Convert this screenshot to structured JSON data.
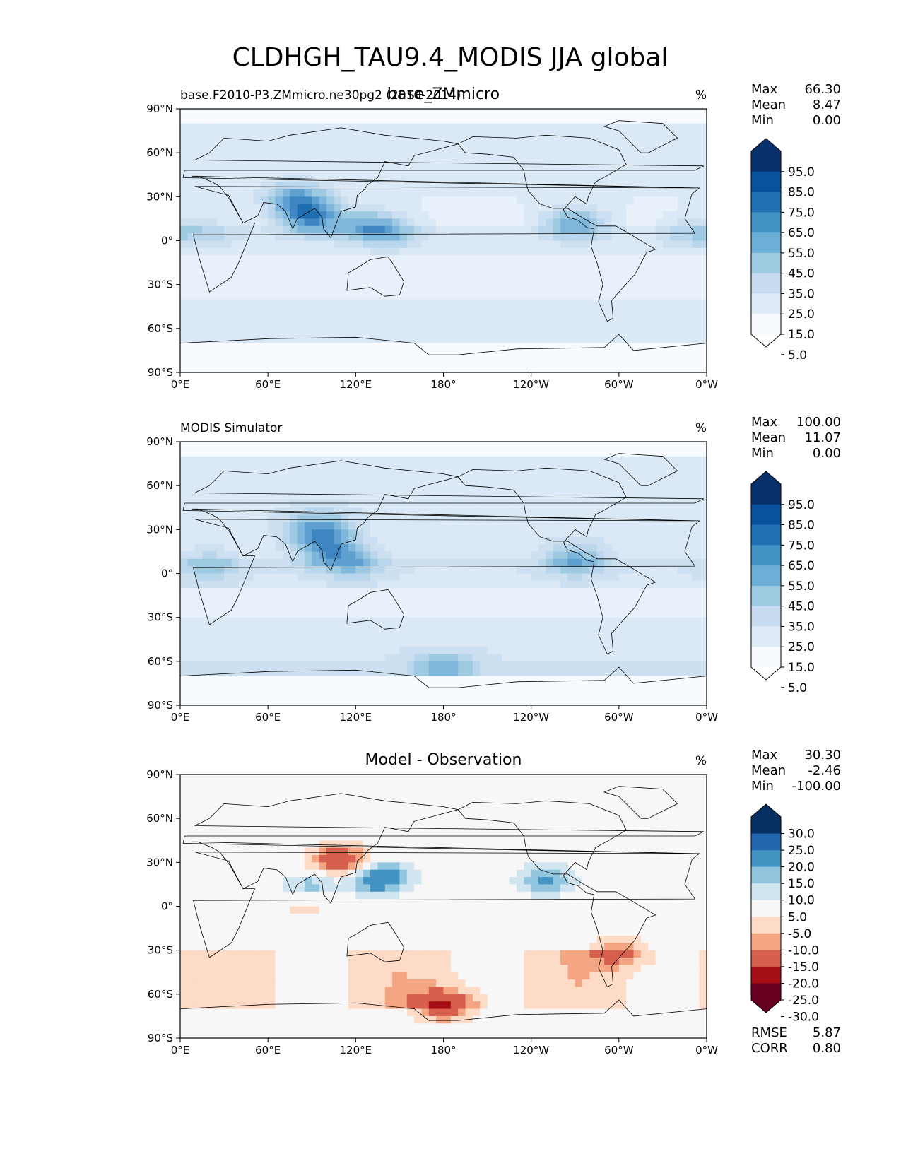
{
  "page_title": "CLDHGH_TAU9.4_MODIS JJA global",
  "x_ticks": [
    "0°E",
    "60°E",
    "120°E",
    "180°",
    "120°W",
    "60°W",
    "0°W"
  ],
  "y_ticks": [
    "90°N",
    "60°N",
    "30°N",
    "0°",
    "30°S",
    "60°S",
    "90°S"
  ],
  "colors": {
    "seq": [
      "#f7fbff",
      "#deebf7",
      "#c6dbef",
      "#9ecae1",
      "#6baed6",
      "#4292c6",
      "#2171b5",
      "#08519c",
      "#08306b"
    ],
    "seq_map": [
      "#f7fbff",
      "#e8f1fa",
      "#dbe9f6",
      "#cde0f1",
      "#b9d6ec",
      "#9ecae1",
      "#7fb6db",
      "#5ea1d0",
      "#3d86c2",
      "#1f6fb0",
      "#0b4f98"
    ],
    "div": [
      "#67001f",
      "#a50f15",
      "#d6604d",
      "#f4a582",
      "#fddbc7",
      "#f7f7f7",
      "#d1e5f0",
      "#92c5de",
      "#4393c3",
      "#2166ac",
      "#053061"
    ],
    "land_line": "#000000"
  },
  "chart_data": [
    {
      "type": "heatmap",
      "panel": "test",
      "title_left": "base.F2010-P3.ZMmicro.ne30pg2 (2010-2014)",
      "title_center": "base_ZMmicro",
      "units": "%",
      "stats": [
        {
          "label": "Max",
          "value": "66.30"
        },
        {
          "label": "Mean",
          "value": "8.47"
        },
        {
          "label": "Min",
          "value": "0.00"
        }
      ],
      "colorbar_levels": [
        "95.0",
        "85.0",
        "75.0",
        "65.0",
        "55.0",
        "45.0",
        "35.0",
        "25.0",
        "15.0",
        "5.0"
      ],
      "colorbar_extend": "both",
      "xlim": [
        0,
        360
      ],
      "ylim": [
        -90,
        90
      ],
      "mean_value": 8.47,
      "features": [
        {
          "lon": 80,
          "lat": 28,
          "amp": 28
        },
        {
          "lon": 90,
          "lat": 15,
          "amp": 30
        },
        {
          "lon": 130,
          "lat": 10,
          "amp": 22
        },
        {
          "lon": 145,
          "lat": 5,
          "amp": 12
        },
        {
          "lon": 270,
          "lat": 12,
          "amp": 26
        },
        {
          "lon": 20,
          "lat": 6,
          "amp": 10
        },
        {
          "lon": 350,
          "lat": 5,
          "amp": 12
        }
      ]
    },
    {
      "type": "heatmap",
      "panel": "reference",
      "title_left": "MODIS Simulator",
      "title_center": "",
      "units": "%",
      "stats": [
        {
          "label": "Max",
          "value": "100.00"
        },
        {
          "label": "Mean",
          "value": "11.07"
        },
        {
          "label": "Min",
          "value": "0.00"
        }
      ],
      "colorbar_levels": [
        "95.0",
        "85.0",
        "75.0",
        "65.0",
        "55.0",
        "45.0",
        "35.0",
        "25.0",
        "15.0",
        "5.0"
      ],
      "colorbar_extend": "both",
      "xlim": [
        0,
        360
      ],
      "ylim": [
        -90,
        90
      ],
      "mean_value": 11.07,
      "features": [
        {
          "lon": 95,
          "lat": 30,
          "amp": 26
        },
        {
          "lon": 100,
          "lat": 15,
          "amp": 22
        },
        {
          "lon": 120,
          "lat": 8,
          "amp": 16
        },
        {
          "lon": 270,
          "lat": 10,
          "amp": 22
        },
        {
          "lon": 20,
          "lat": 6,
          "amp": 14
        },
        {
          "lon": 180,
          "lat": -65,
          "amp": 20
        }
      ]
    },
    {
      "type": "heatmap",
      "panel": "difference",
      "title_left": "",
      "title_center": "Model - Observation",
      "units": "%",
      "stats": [
        {
          "label": "Max",
          "value": "30.30"
        },
        {
          "label": "Mean",
          "value": "-2.46"
        },
        {
          "label": "Min",
          "value": "-100.00"
        }
      ],
      "colorbar_levels": [
        "30.0",
        "25.0",
        "20.0",
        "15.0",
        "10.0",
        "5.0",
        "-5.0",
        "-10.0",
        "-15.0",
        "-20.0",
        "-25.0",
        "-30.0"
      ],
      "colorbar_extend": "both",
      "xlim": [
        0,
        360
      ],
      "ylim": [
        -90,
        90
      ],
      "mean_value": -2.46,
      "features": [
        {
          "lon": 110,
          "lat": 30,
          "amp": -28
        },
        {
          "lon": 135,
          "lat": 20,
          "amp": 26
        },
        {
          "lon": 90,
          "lat": 15,
          "amp": 14
        },
        {
          "lon": 250,
          "lat": 18,
          "amp": 16
        },
        {
          "lon": 300,
          "lat": -30,
          "amp": -14
        },
        {
          "lon": 180,
          "lat": -68,
          "amp": -22
        },
        {
          "lon": 85,
          "lat": 0,
          "amp": -8
        }
      ],
      "metrics": [
        {
          "label": "RMSE",
          "value": "5.87"
        },
        {
          "label": "CORR",
          "value": "0.80"
        }
      ]
    }
  ]
}
